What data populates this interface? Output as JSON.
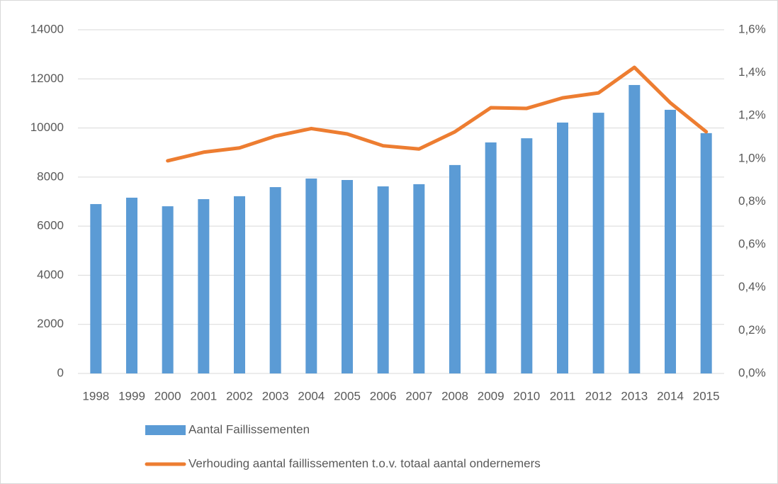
{
  "chart_data": {
    "type": "bar_line",
    "categories": [
      "1998",
      "1999",
      "2000",
      "2001",
      "2002",
      "2003",
      "2004",
      "2005",
      "2006",
      "2007",
      "2008",
      "2009",
      "2010",
      "2011",
      "2012",
      "2013",
      "2014",
      "2015"
    ],
    "series": [
      {
        "name": "Aantal Faillissementen",
        "type": "bar",
        "color": "#5b9bd5",
        "values": [
          6900,
          7160,
          6810,
          7100,
          7220,
          7590,
          7940,
          7880,
          7620,
          7710,
          8490,
          9410,
          9580,
          10220,
          10620,
          11750,
          10740,
          9790
        ]
      },
      {
        "name": "Verhouding aantal faillissementen t.o.v. totaal aantal ondernemers",
        "type": "line",
        "axis": "y2",
        "color": "#ed7d31",
        "values": [
          null,
          null,
          0.99,
          1.03,
          1.05,
          1.105,
          1.14,
          1.115,
          1.06,
          1.045,
          1.125,
          1.237,
          1.234,
          1.283,
          1.306,
          1.425,
          1.26,
          1.125
        ]
      }
    ],
    "ylim": [
      0,
      14000
    ],
    "yticks": [
      0,
      2000,
      4000,
      6000,
      8000,
      10000,
      12000,
      14000
    ],
    "y2lim": [
      0,
      1.6
    ],
    "y2ticks": [
      {
        "value": 0,
        "label": "0,0%"
      },
      {
        "value": 0.2,
        "label": "0,2%"
      },
      {
        "value": 0.4,
        "label": "0,4%"
      },
      {
        "value": 0.6,
        "label": "0,6%"
      },
      {
        "value": 0.8,
        "label": "0,8%"
      },
      {
        "value": 1.0,
        "label": "1,0%"
      },
      {
        "value": 1.2,
        "label": "1,2%"
      },
      {
        "value": 1.4,
        "label": "1,4%"
      },
      {
        "value": 1.6,
        "label": "1,6%"
      }
    ],
    "grid": true,
    "legend": "bottom"
  }
}
